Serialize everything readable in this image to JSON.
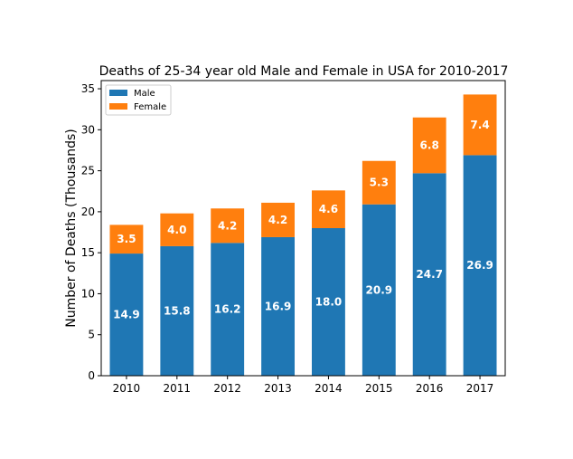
{
  "chart_data": {
    "type": "bar",
    "stacked": true,
    "title": "Deaths of 25-34 year old Male and Female in USA for 2010-2017",
    "xlabel": "",
    "ylabel": "Number of Deaths (Thousands)",
    "categories": [
      "2010",
      "2011",
      "2012",
      "2013",
      "2014",
      "2015",
      "2016",
      "2017"
    ],
    "series": [
      {
        "name": "Male",
        "color": "#1f77b4",
        "values": [
          14.9,
          15.8,
          16.2,
          16.9,
          18.0,
          20.9,
          24.7,
          26.9
        ],
        "labels": [
          "14.9",
          "15.8",
          "16.2",
          "16.9",
          "18.0",
          "20.9",
          "24.7",
          "26.9"
        ]
      },
      {
        "name": "Female",
        "color": "#ff7f0e",
        "values": [
          3.5,
          4.0,
          4.2,
          4.2,
          4.6,
          5.3,
          6.8,
          7.4
        ],
        "labels": [
          "3.5",
          "4.0",
          "4.2",
          "4.2",
          "4.6",
          "5.3",
          "6.8",
          "7.4"
        ]
      }
    ],
    "ylim": [
      0,
      36
    ],
    "yticks": [
      0,
      5,
      10,
      15,
      20,
      25,
      30,
      35
    ],
    "grid": false,
    "legend_position": "top-left"
  }
}
